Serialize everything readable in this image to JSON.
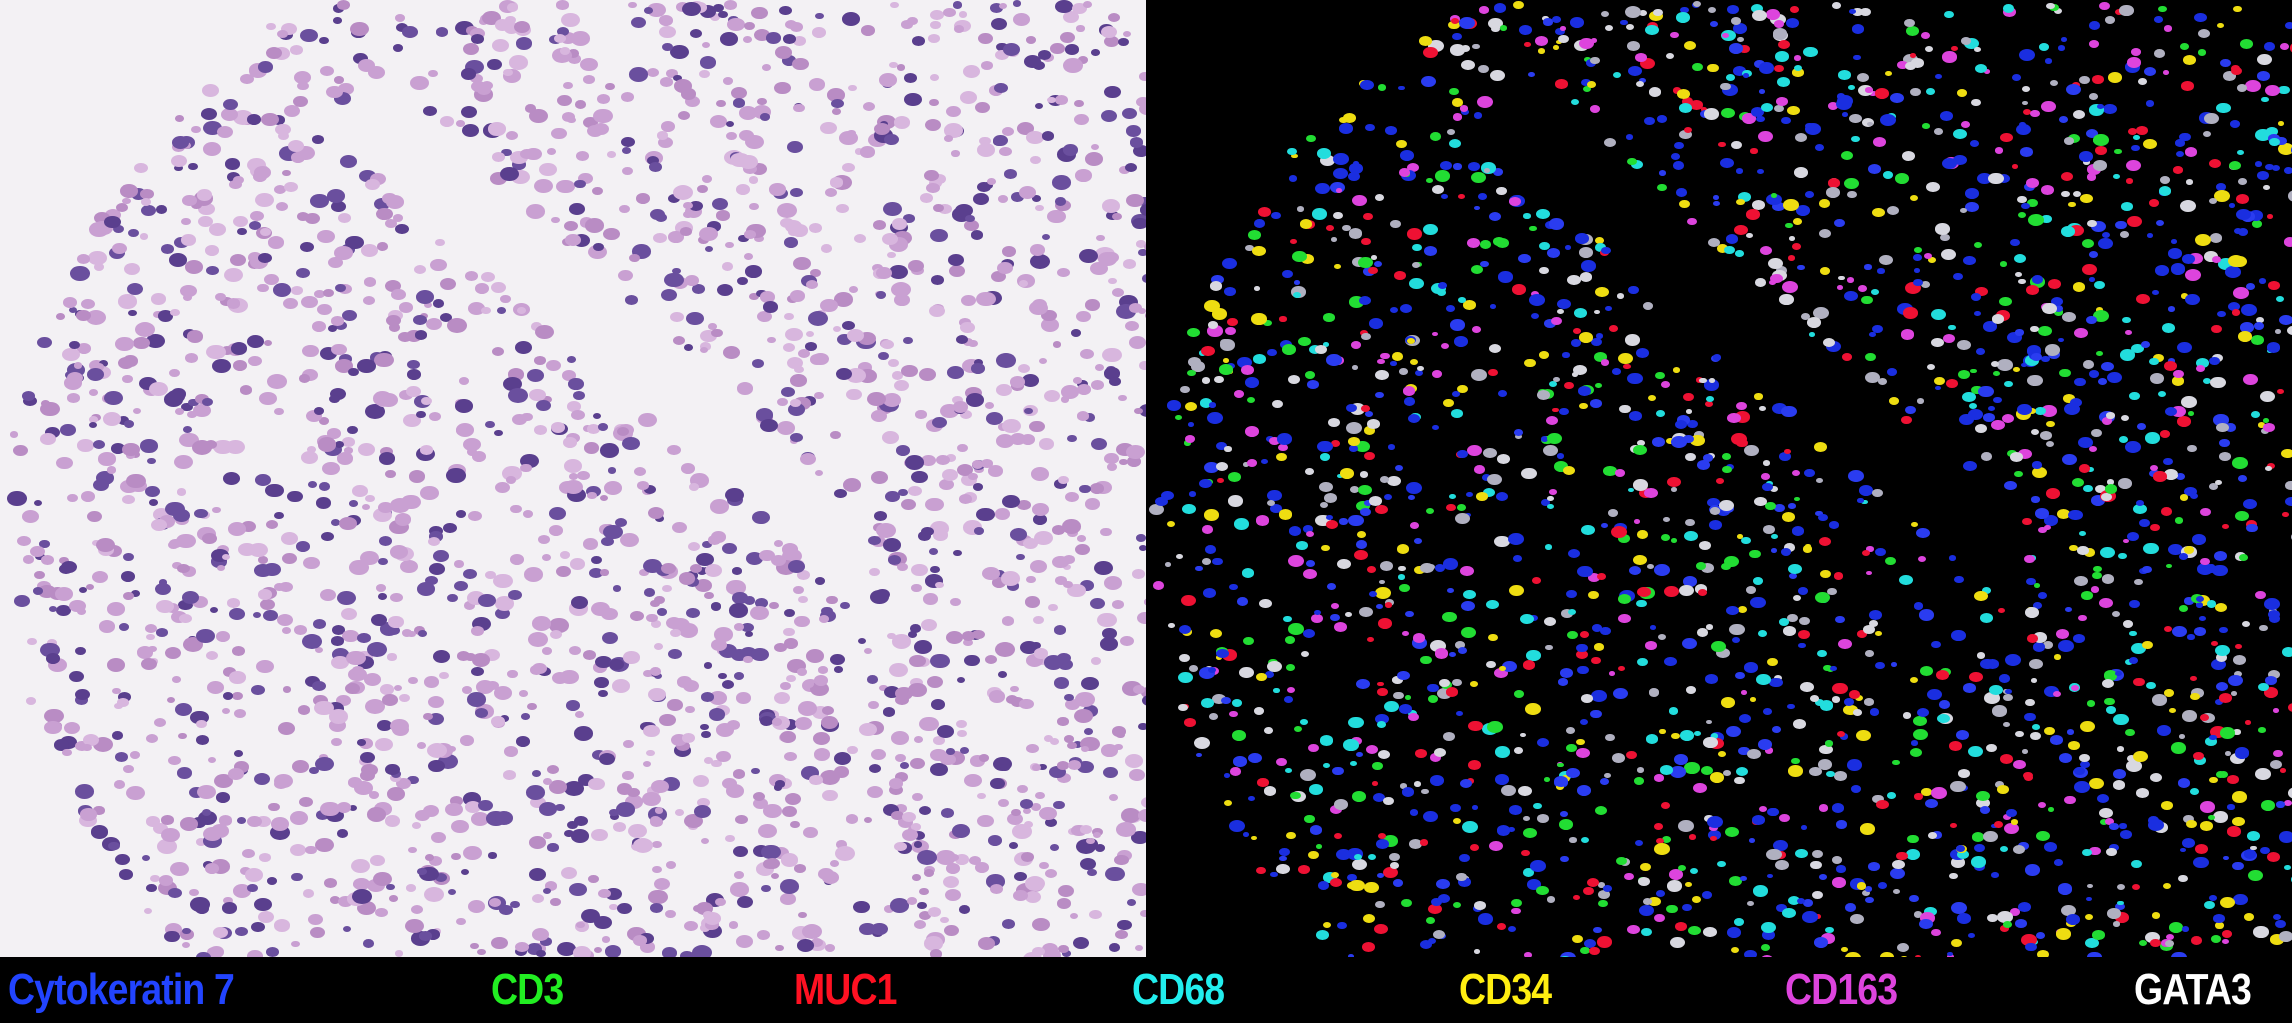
{
  "left_panel": {
    "colors": {
      "background": "#f3f1f4",
      "tissue": "#b98cc4",
      "nuclei": "#5a3f8e"
    }
  },
  "right_panel": {
    "colors": {
      "background": "#000000"
    }
  },
  "legend": {
    "items": [
      {
        "label": "Cytokeratin 7",
        "color": "#2244ff"
      },
      {
        "label": "CD3",
        "color": "#22ee22"
      },
      {
        "label": "MUC1",
        "color": "#ff1122"
      },
      {
        "label": "CD68",
        "color": "#22eeee"
      },
      {
        "label": "CD34",
        "color": "#ffee11"
      },
      {
        "label": "CD163",
        "color": "#dd44dd"
      },
      {
        "label": "GATA3",
        "color": "#ffffff"
      }
    ]
  }
}
